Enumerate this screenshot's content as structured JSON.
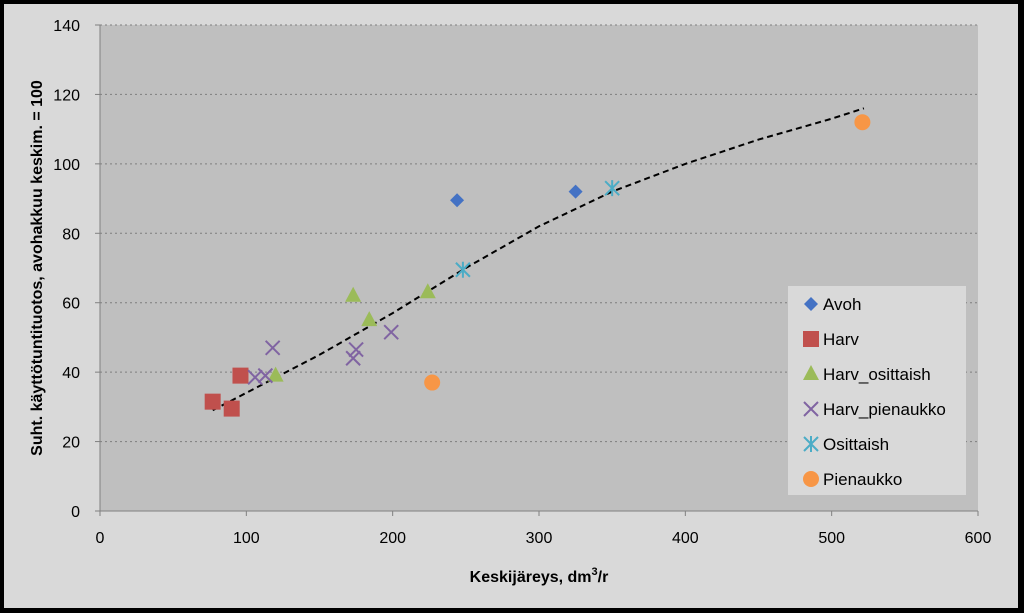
{
  "chart_data": {
    "type": "scatter",
    "title": "",
    "xlabel": "Keskijäreys, dm",
    "xlabel_sup": "3",
    "xlabel_suffix": "/r",
    "ylabel": "Suht. käyttötuntituotos,  avohakkuu keskim. = 100",
    "xlim": [
      0,
      600
    ],
    "ylim": [
      0,
      140
    ],
    "x_ticks": [
      "0",
      "100",
      "200",
      "300",
      "400",
      "500",
      "600"
    ],
    "y_ticks": [
      "0",
      "20",
      "40",
      "60",
      "80",
      "100",
      "120",
      "140"
    ],
    "grid": "horizontal-dashed",
    "legend_position": "right",
    "series": [
      {
        "name": "Avoh",
        "marker": "diamond",
        "color": "#4472C4",
        "points": [
          [
            244,
            89.5
          ],
          [
            325,
            92
          ]
        ]
      },
      {
        "name": "Harv",
        "marker": "square",
        "color": "#C0504D",
        "points": [
          [
            77,
            31.5
          ],
          [
            90,
            29.5
          ],
          [
            96,
            39
          ]
        ]
      },
      {
        "name": "Harv_osittaish",
        "marker": "triangle",
        "color": "#9BBB59",
        "points": [
          [
            120,
            39
          ],
          [
            173,
            62
          ],
          [
            184,
            55
          ],
          [
            224,
            63
          ]
        ]
      },
      {
        "name": "Harv_pienaukko",
        "marker": "x",
        "color": "#8064A2",
        "points": [
          [
            106,
            38.5
          ],
          [
            113,
            39
          ],
          [
            118,
            47
          ],
          [
            173,
            44
          ],
          [
            175,
            46.5
          ],
          [
            199,
            51.5
          ]
        ]
      },
      {
        "name": "Osittaish",
        "marker": "asterisk",
        "color": "#4BACC6",
        "points": [
          [
            248,
            69.5
          ],
          [
            350,
            93
          ]
        ]
      },
      {
        "name": "Pienaukko",
        "marker": "circle",
        "color": "#F79646",
        "points": [
          [
            227,
            37
          ],
          [
            521,
            112
          ]
        ]
      }
    ],
    "trendline": {
      "style": "dashed",
      "color": "#000000",
      "points": [
        [
          77,
          29
        ],
        [
          150,
          45
        ],
        [
          200,
          57
        ],
        [
          250,
          70
        ],
        [
          300,
          82
        ],
        [
          350,
          92
        ],
        [
          400,
          100
        ],
        [
          450,
          107
        ],
        [
          500,
          113
        ],
        [
          522,
          116
        ]
      ]
    }
  }
}
